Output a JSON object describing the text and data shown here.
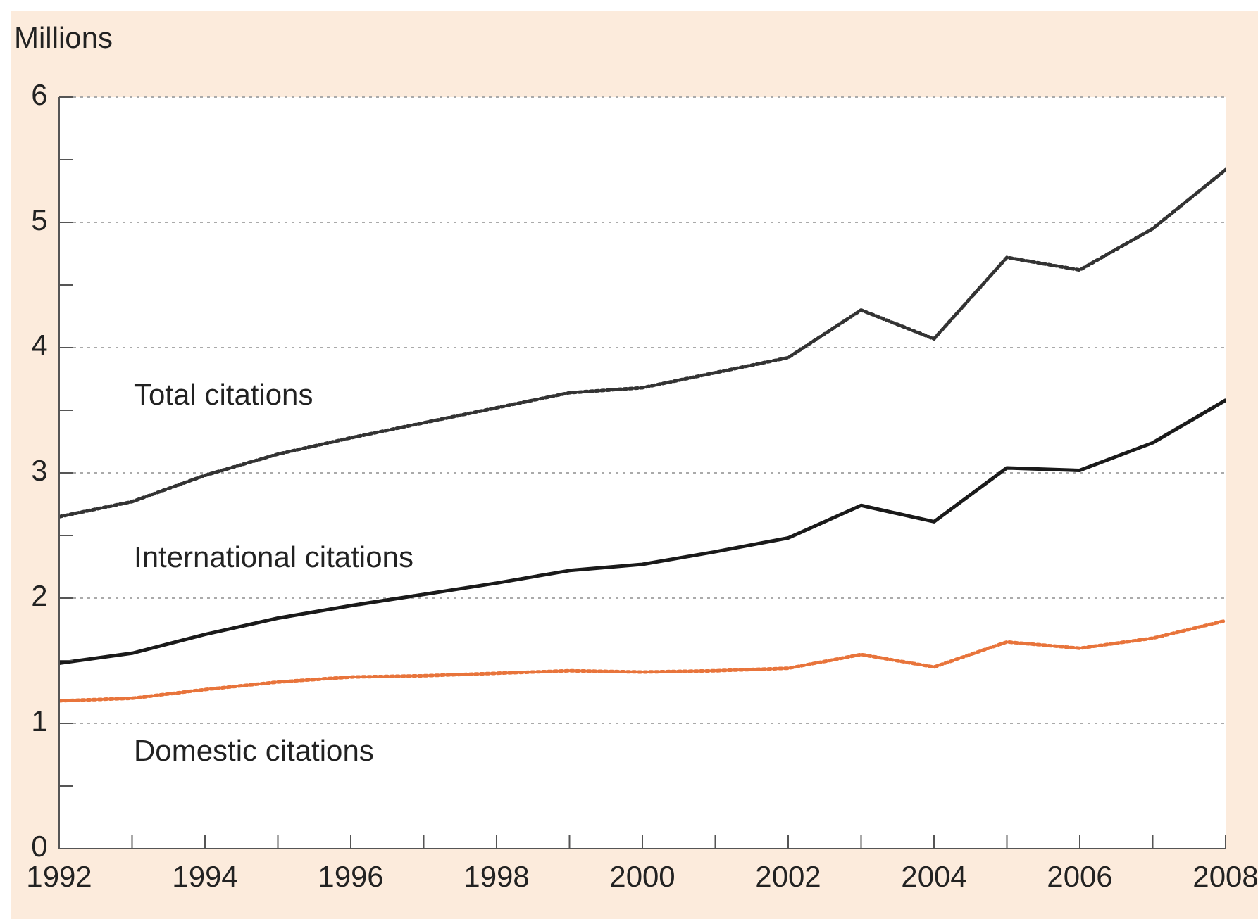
{
  "chart_data": {
    "type": "line",
    "ylabel": "Millions",
    "x": [
      1992,
      1993,
      1994,
      1995,
      1996,
      1997,
      1998,
      1999,
      2000,
      2001,
      2002,
      2003,
      2004,
      2005,
      2006,
      2007,
      2008
    ],
    "series": [
      {
        "name": "Total citations",
        "color": "#333333",
        "line_style": "dotted",
        "values": [
          2.65,
          2.77,
          2.98,
          3.15,
          3.28,
          3.4,
          3.52,
          3.64,
          3.68,
          3.8,
          3.92,
          4.3,
          4.07,
          4.72,
          4.62,
          4.95,
          5.42
        ]
      },
      {
        "name": "International citations",
        "color": "#1a1a1a",
        "line_style": "solid",
        "values": [
          1.48,
          1.56,
          1.71,
          1.84,
          1.94,
          2.03,
          2.12,
          2.22,
          2.27,
          2.37,
          2.48,
          2.74,
          2.61,
          3.04,
          3.02,
          3.24,
          3.58
        ]
      },
      {
        "name": "Domestic citations",
        "color": "#e8743b",
        "line_style": "dotted",
        "values": [
          1.18,
          1.2,
          1.27,
          1.33,
          1.37,
          1.38,
          1.4,
          1.42,
          1.41,
          1.42,
          1.44,
          1.55,
          1.45,
          1.65,
          1.6,
          1.68,
          1.82
        ]
      }
    ],
    "xlim": [
      1992,
      2008
    ],
    "xticks": [
      1992,
      {
        "value": 1993,
        "label": null
      },
      1994,
      {
        "value": 1995,
        "label": null
      },
      1996,
      {
        "value": 1997,
        "label": null
      },
      1998,
      {
        "value": 1999,
        "label": null
      },
      2000,
      {
        "value": 2001,
        "label": null
      },
      2002,
      {
        "value": 2003,
        "label": null
      },
      2004,
      {
        "value": 2005,
        "label": null
      },
      2006,
      {
        "value": 2007,
        "label": null
      },
      2008
    ],
    "ylim": [
      0,
      6
    ],
    "yticks": [
      0,
      {
        "value": 0.5,
        "label": null
      },
      1,
      {
        "value": 1.5,
        "label": null
      },
      2,
      {
        "value": 2.5,
        "label": null
      },
      3,
      {
        "value": 3.5,
        "label": null
      },
      4,
      {
        "value": 4.5,
        "label": null
      },
      5,
      {
        "value": 5.5,
        "label": null
      },
      6
    ],
    "grid": "y",
    "legend": false,
    "marker": "none"
  }
}
